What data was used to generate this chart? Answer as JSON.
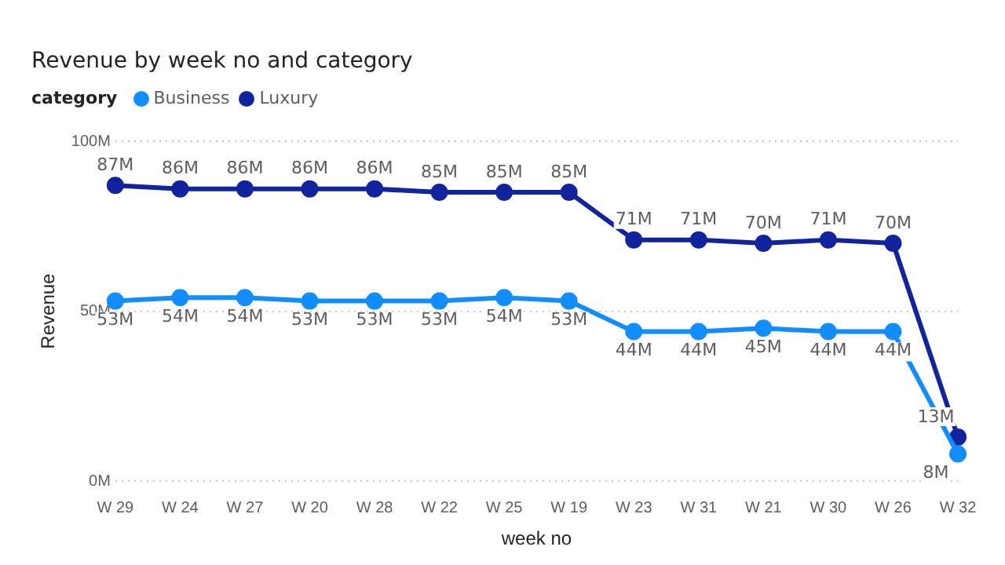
{
  "chart_data": {
    "type": "line",
    "title": "Revenue by week no and category",
    "xlabel": "week no",
    "ylabel": "Revenue",
    "legend_title": "category",
    "legend": "top left",
    "grid": "y",
    "marker": "circle",
    "line_style": "solid",
    "categories": [
      "W 29",
      "W 24",
      "W 27",
      "W 20",
      "W 28",
      "W 22",
      "W 25",
      "W 19",
      "W 23",
      "W 31",
      "W 21",
      "W 30",
      "W 26",
      "W 32"
    ],
    "ylim": [
      0,
      100
    ],
    "yticks": [
      {
        "value": 0,
        "label": "0M"
      },
      {
        "value": 50,
        "label": "50M"
      },
      {
        "value": 100,
        "label": "100M"
      }
    ],
    "series": [
      {
        "name": "Business",
        "color": "#118dff",
        "values": [
          53,
          54,
          54,
          53,
          53,
          53,
          54,
          53,
          44,
          44,
          45,
          44,
          44,
          8
        ],
        "value_labels": [
          "53M",
          "54M",
          "54M",
          "53M",
          "53M",
          "53M",
          "54M",
          "53M",
          "44M",
          "44M",
          "45M",
          "44M",
          "44M",
          "8M"
        ]
      },
      {
        "name": "Luxury",
        "color": "#12239e",
        "values": [
          87,
          86,
          86,
          86,
          86,
          85,
          85,
          85,
          71,
          71,
          70,
          71,
          70,
          13
        ],
        "value_labels": [
          "87M",
          "86M",
          "86M",
          "86M",
          "86M",
          "85M",
          "85M",
          "85M",
          "71M",
          "71M",
          "70M",
          "71M",
          "70M",
          "13M"
        ]
      }
    ]
  }
}
